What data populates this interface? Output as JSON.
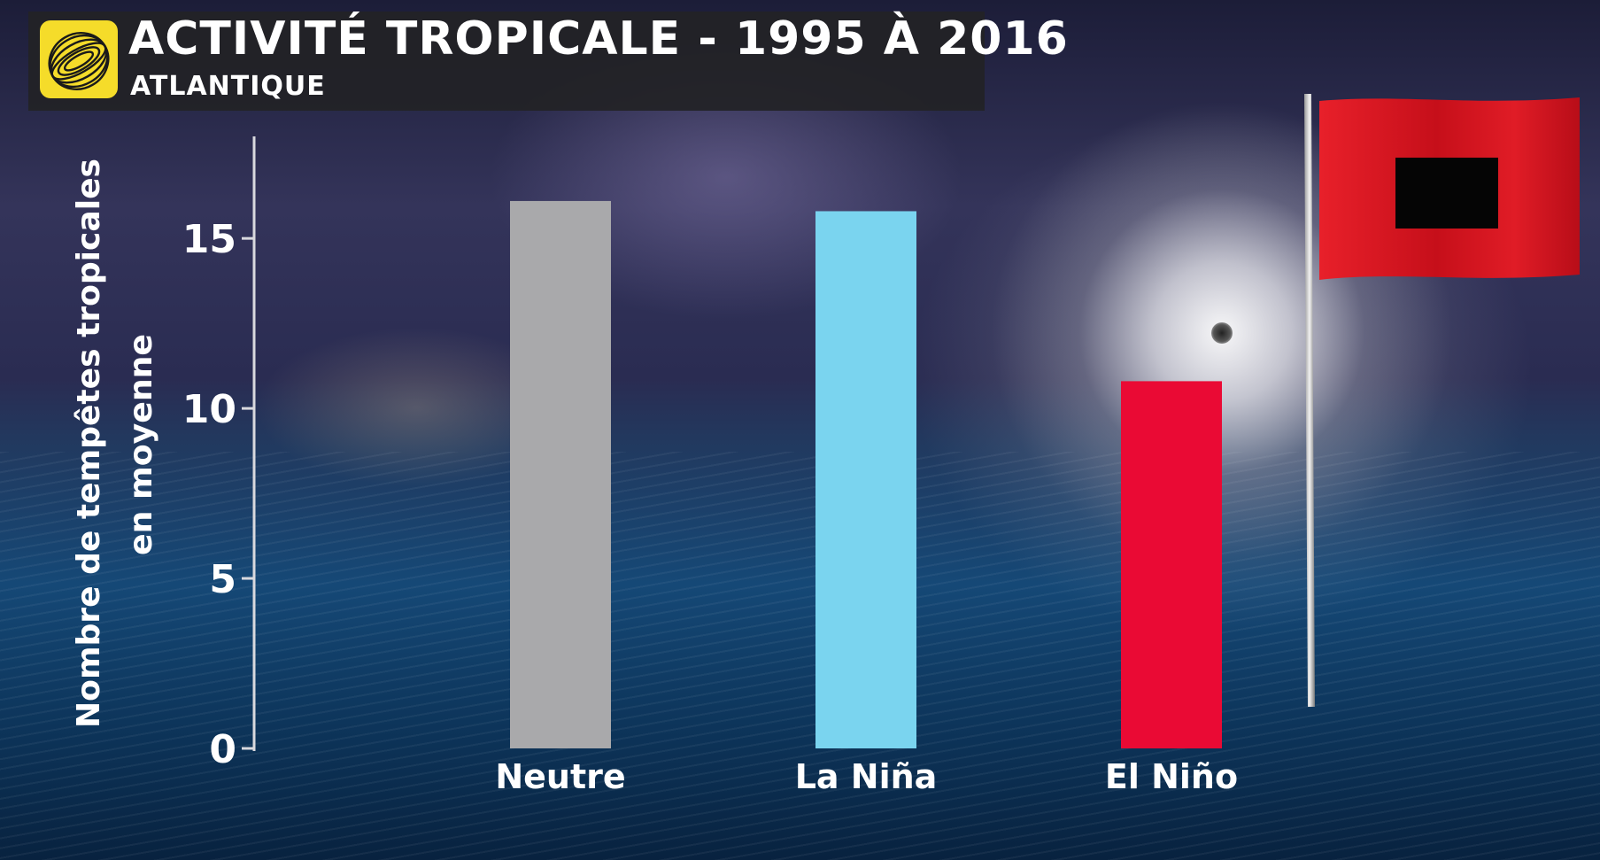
{
  "header": {
    "title": "ACTIVITÉ TROPICALE - 1995 À 2016",
    "subtitle": "ATLANTIQUE"
  },
  "icons": {
    "logo": "globe-swirl-logo-icon",
    "flag": "hurricane-warning-flag-icon"
  },
  "colors": {
    "neutre": "#a9a9ab",
    "la_nina": "#7ad4ef",
    "el_nino": "#ea0a34",
    "logo_yellow": "#f5dc2a",
    "flag_red": "#d8121f"
  },
  "chart_data": {
    "type": "bar",
    "categories": [
      "Neutre",
      "La Niña",
      "El Niño"
    ],
    "values": [
      16.1,
      15.8,
      10.8
    ],
    "bar_colors": [
      "#a9a9ab",
      "#7ad4ef",
      "#ea0a34"
    ],
    "title": "ACTIVITÉ TROPICALE - 1995 À 2016",
    "subtitle": "ATLANTIQUE",
    "ylabel_line1": "Nombre de tempêtes tropicales",
    "ylabel_line2": "en moyenne",
    "xlabel": "",
    "ylim": [
      0,
      18
    ],
    "yticks": [
      0,
      5,
      10,
      15
    ],
    "grid": false,
    "legend": "none"
  }
}
